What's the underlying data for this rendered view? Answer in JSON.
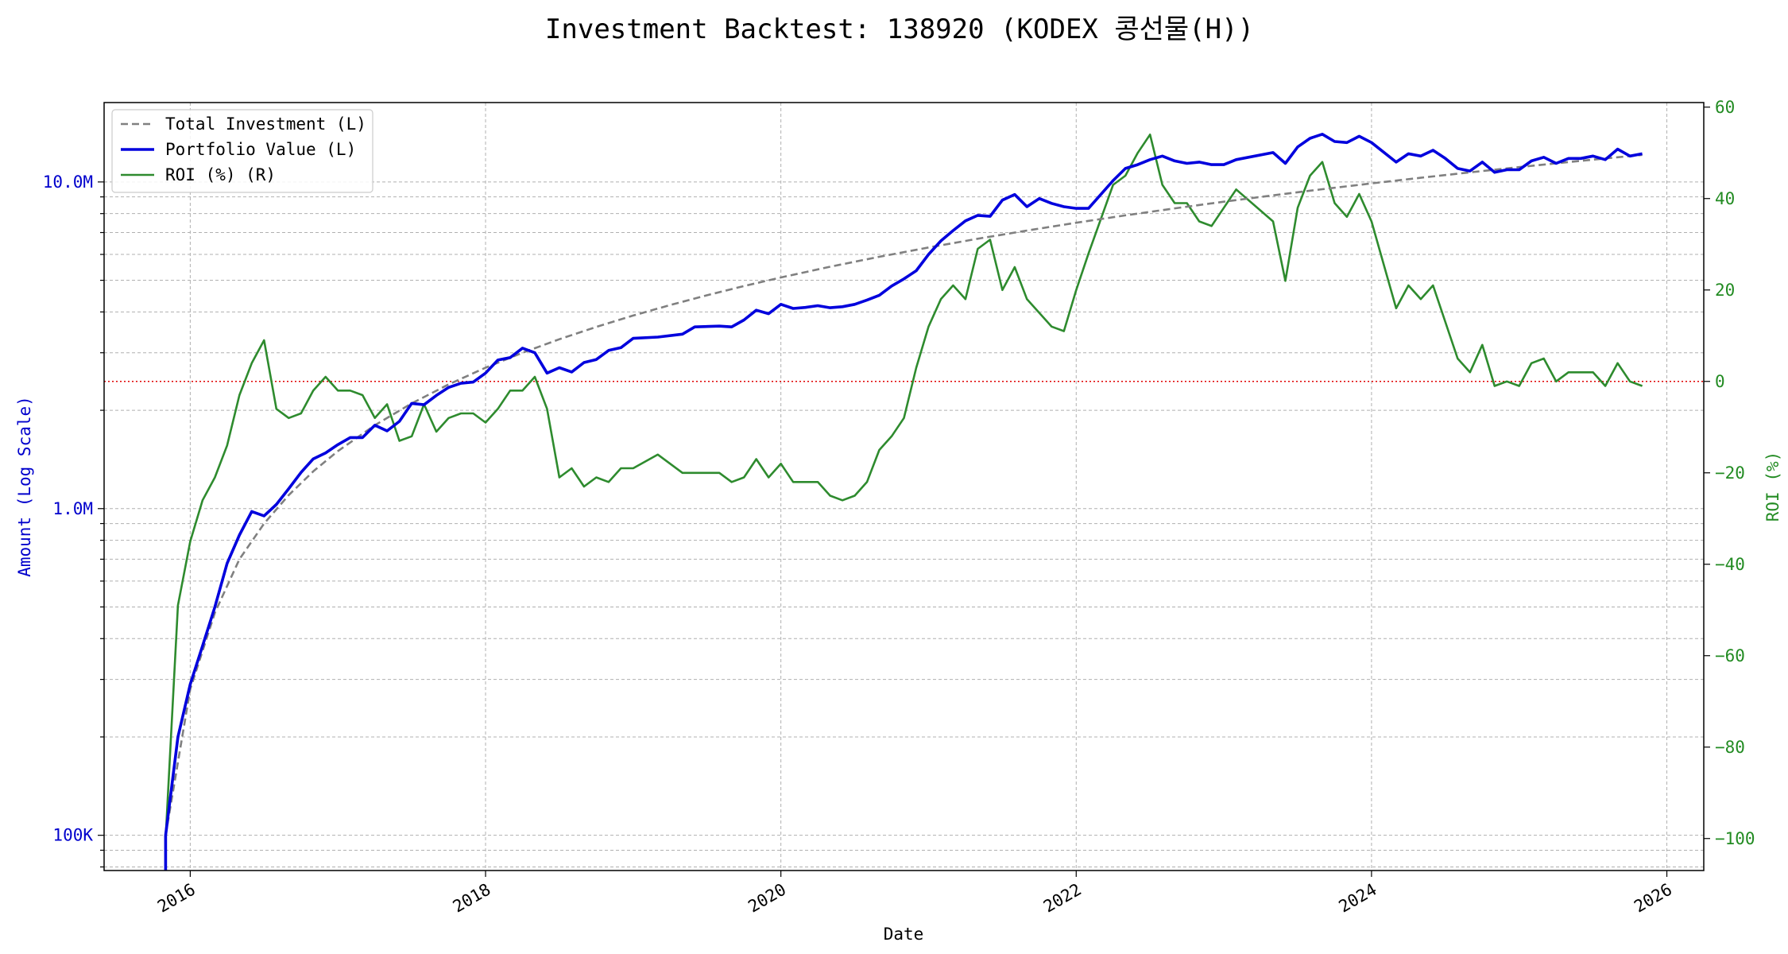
{
  "chart_data": {
    "type": "line",
    "title": "Investment Backtest: 138920 (KODEX 콩선물(H))",
    "xlabel": "Date",
    "ylabel_left": "Amount (Log Scale)",
    "ylabel_right": "ROI (%)",
    "left_axis_scale": "log",
    "left_ylim": [
      78000,
      17500000
    ],
    "right_ylim": [
      -107,
      61
    ],
    "xlim": [
      "2015-06-01",
      "2026-04-01"
    ],
    "grid": true,
    "legend_position": "top-left",
    "reference_line": {
      "axis": "right",
      "value": 0,
      "color": "#e00000",
      "style": "dotted"
    },
    "x_ticks": [
      "2016",
      "2018",
      "2020",
      "2022",
      "2024",
      "2026"
    ],
    "left_ticks": [
      {
        "value": 100000,
        "label": "100K"
      },
      {
        "value": 1000000,
        "label": "1.0M"
      },
      {
        "value": 10000000,
        "label": "10.0M"
      }
    ],
    "right_ticks": [
      -100,
      -80,
      -60,
      -40,
      -20,
      0,
      20,
      40,
      60
    ],
    "series": [
      {
        "name": "Total Investment (L)",
        "axis": "left",
        "color": "#808080",
        "style": "dashed",
        "x": [
          "2015-11",
          "2016-01",
          "2016-03",
          "2016-05",
          "2016-07",
          "2016-09",
          "2016-11",
          "2017-01",
          "2017-04",
          "2017-07",
          "2017-10",
          "2018-01",
          "2018-04",
          "2018-07",
          "2018-10",
          "2019-01",
          "2019-04",
          "2019-07",
          "2019-10",
          "2020-01",
          "2020-05",
          "2020-09",
          "2021-01",
          "2021-05",
          "2021-09",
          "2022-01",
          "2022-05",
          "2022-09",
          "2023-01",
          "2023-05",
          "2023-09",
          "2024-01",
          "2024-05",
          "2024-09",
          "2025-01",
          "2025-05",
          "2025-09",
          "2025-11"
        ],
        "values": [
          100000,
          280000,
          480000,
          700000,
          900000,
          1100000,
          1300000,
          1500000,
          1800000,
          2100000,
          2400000,
          2700000,
          3000000,
          3300000,
          3600000,
          3900000,
          4200000,
          4500000,
          4800000,
          5100000,
          5500000,
          5900000,
          6300000,
          6700000,
          7100000,
          7500000,
          7900000,
          8300000,
          8700000,
          9100000,
          9500000,
          9900000,
          10300000,
          10700000,
          11100000,
          11500000,
          11900000,
          12100000
        ]
      },
      {
        "name": "Portfolio Value (L)",
        "axis": "left",
        "color": "#0000dd",
        "style": "solid",
        "x": [
          "2015-11",
          "2015-11",
          "2015-12",
          "2016-01",
          "2016-02",
          "2016-03",
          "2016-04",
          "2016-05",
          "2016-06",
          "2016-07",
          "2016-08",
          "2016-09",
          "2016-10",
          "2016-11",
          "2016-12",
          "2017-01",
          "2017-02",
          "2017-03",
          "2017-04",
          "2017-05",
          "2017-06",
          "2017-07",
          "2017-08",
          "2017-09",
          "2017-10",
          "2017-11",
          "2017-12",
          "2018-01",
          "2018-02",
          "2018-03",
          "2018-04",
          "2018-05",
          "2018-06",
          "2018-07",
          "2018-08",
          "2018-09",
          "2018-10",
          "2018-11",
          "2018-12",
          "2019-01",
          "2019-03",
          "2019-05",
          "2019-06",
          "2019-08",
          "2019-09",
          "2019-10",
          "2019-11",
          "2019-12",
          "2020-01",
          "2020-02",
          "2020-03",
          "2020-04",
          "2020-05",
          "2020-06",
          "2020-07",
          "2020-08",
          "2020-09",
          "2020-10",
          "2020-11",
          "2020-12",
          "2021-01",
          "2021-02",
          "2021-03",
          "2021-04",
          "2021-05",
          "2021-06",
          "2021-07",
          "2021-08",
          "2021-09",
          "2021-10",
          "2021-11",
          "2021-12",
          "2022-01",
          "2022-02",
          "2022-04",
          "2022-05",
          "2022-06",
          "2022-07",
          "2022-08",
          "2022-09",
          "2022-10",
          "2022-11",
          "2022-12",
          "2023-01",
          "2023-02",
          "2023-05",
          "2023-06",
          "2023-07",
          "2023-08",
          "2023-09",
          "2023-10",
          "2023-11",
          "2023-12",
          "2024-01",
          "2024-03",
          "2024-04",
          "2024-05",
          "2024-06",
          "2024-07",
          "2024-08",
          "2024-09",
          "2024-10",
          "2024-11",
          "2024-12",
          "2025-01",
          "2025-02",
          "2025-03",
          "2025-04",
          "2025-05",
          "2025-06",
          "2025-07",
          "2025-08",
          "2025-09",
          "2025-10",
          "2025-11"
        ],
        "values": [
          70000,
          100000,
          200000,
          290000,
          380000,
          500000,
          680000,
          830000,
          980000,
          950000,
          1030000,
          1150000,
          1290000,
          1420000,
          1480000,
          1570000,
          1650000,
          1650000,
          1800000,
          1730000,
          1850000,
          2100000,
          2080000,
          2220000,
          2350000,
          2420000,
          2440000,
          2600000,
          2850000,
          2900000,
          3100000,
          3000000,
          2600000,
          2700000,
          2620000,
          2800000,
          2860000,
          3050000,
          3110000,
          3320000,
          3350000,
          3420000,
          3600000,
          3620000,
          3600000,
          3780000,
          4050000,
          3950000,
          4220000,
          4100000,
          4130000,
          4180000,
          4120000,
          4150000,
          4220000,
          4350000,
          4500000,
          4800000,
          5050000,
          5350000,
          6000000,
          6600000,
          7100000,
          7600000,
          7900000,
          7850000,
          8800000,
          9150000,
          8400000,
          8900000,
          8600000,
          8400000,
          8300000,
          8300000,
          10100000,
          11000000,
          11300000,
          11700000,
          12000000,
          11600000,
          11400000,
          11500000,
          11300000,
          11300000,
          11700000,
          12300000,
          11400000,
          12800000,
          13600000,
          14000000,
          13300000,
          13200000,
          13800000,
          13200000,
          11500000,
          12200000,
          12000000,
          12500000,
          11800000,
          11000000,
          10800000,
          11500000,
          10700000,
          10900000,
          10900000,
          11600000,
          11900000,
          11400000,
          11800000,
          11800000,
          12000000,
          11700000,
          12600000,
          12000000,
          12200000
        ]
      },
      {
        "name": "ROI (%) (R)",
        "axis": "right",
        "color": "#2e8b2e",
        "style": "solid",
        "x": [
          "2015-11",
          "2015-12",
          "2016-01",
          "2016-02",
          "2016-03",
          "2016-04",
          "2016-05",
          "2016-06",
          "2016-07",
          "2016-08",
          "2016-09",
          "2016-10",
          "2016-11",
          "2016-12",
          "2017-01",
          "2017-02",
          "2017-03",
          "2017-04",
          "2017-05",
          "2017-06",
          "2017-07",
          "2017-08",
          "2017-09",
          "2017-10",
          "2017-11",
          "2017-12",
          "2018-01",
          "2018-02",
          "2018-03",
          "2018-04",
          "2018-05",
          "2018-06",
          "2018-07",
          "2018-08",
          "2018-09",
          "2018-10",
          "2018-11",
          "2018-12",
          "2019-01",
          "2019-03",
          "2019-05",
          "2019-06",
          "2019-08",
          "2019-09",
          "2019-10",
          "2019-11",
          "2019-12",
          "2020-01",
          "2020-02",
          "2020-03",
          "2020-04",
          "2020-05",
          "2020-06",
          "2020-07",
          "2020-08",
          "2020-09",
          "2020-10",
          "2020-11",
          "2020-12",
          "2021-01",
          "2021-02",
          "2021-03",
          "2021-04",
          "2021-05",
          "2021-06",
          "2021-07",
          "2021-08",
          "2021-09",
          "2021-10",
          "2021-11",
          "2021-12",
          "2022-01",
          "2022-02",
          "2022-04",
          "2022-05",
          "2022-06",
          "2022-07",
          "2022-08",
          "2022-09",
          "2022-10",
          "2022-11",
          "2022-12",
          "2023-01",
          "2023-02",
          "2023-05",
          "2023-06",
          "2023-07",
          "2023-08",
          "2023-09",
          "2023-10",
          "2023-11",
          "2023-12",
          "2024-01",
          "2024-03",
          "2024-04",
          "2024-05",
          "2024-06",
          "2024-07",
          "2024-08",
          "2024-09",
          "2024-10",
          "2024-11",
          "2024-12",
          "2025-01",
          "2025-02",
          "2025-03",
          "2025-04",
          "2025-05",
          "2025-06",
          "2025-07",
          "2025-08",
          "2025-09",
          "2025-10",
          "2025-11"
        ],
        "values": [
          -100,
          -49,
          -35,
          -26,
          -21,
          -14,
          -3,
          4,
          9,
          -6,
          -8,
          -7,
          -2,
          1,
          -2,
          -2,
          -3,
          -8,
          -5,
          -13,
          -12,
          -5,
          -11,
          -8,
          -7,
          -7,
          -9,
          -6,
          -2,
          -2,
          1,
          -6,
          -21,
          -19,
          -23,
          -21,
          -22,
          -19,
          -19,
          -16,
          -20,
          -20,
          -20,
          -22,
          -21,
          -17,
          -21,
          -18,
          -22,
          -22,
          -22,
          -25,
          -26,
          -25,
          -22,
          -15,
          -12,
          -8,
          3,
          12,
          18,
          21,
          18,
          29,
          31,
          20,
          25,
          18,
          15,
          12,
          11,
          20,
          28,
          43,
          45,
          50,
          54,
          43,
          39,
          39,
          35,
          34,
          38,
          42,
          35,
          22,
          38,
          45,
          48,
          39,
          36,
          41,
          35,
          16,
          21,
          18,
          21,
          13,
          5,
          2,
          8,
          -1,
          0,
          -1,
          4,
          5,
          0,
          2,
          2,
          2,
          -1,
          4,
          0,
          -1
        ]
      }
    ]
  }
}
